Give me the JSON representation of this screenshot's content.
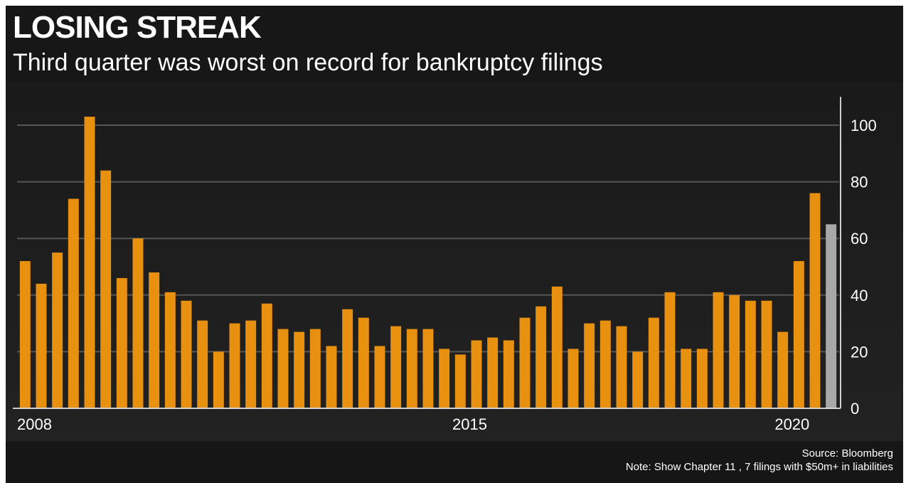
{
  "header": {
    "title": "LOSING STREAK",
    "subtitle": "Third quarter was worst on record for bankruptcy filings"
  },
  "footer": {
    "source": "Source: Bloomberg",
    "note": "Note: Show Chapter 11 , 7 filings with $50m+ in liabilities"
  },
  "colors": {
    "background": "#171717",
    "bar": "#e8900f",
    "highlight_bar": "#a8a8a8",
    "grid": "#555555",
    "text": "#ffffff"
  },
  "chart_data": {
    "type": "bar",
    "title": "LOSING STREAK",
    "subtitle": "Third quarter was worst on record for bankruptcy filings",
    "xlabel": "",
    "ylabel": "",
    "ylim": [
      0,
      110
    ],
    "yticks": [
      0,
      20,
      40,
      60,
      80,
      100
    ],
    "y_axis_side": "right",
    "grid": true,
    "x_tick_labels": [
      {
        "label": "2008",
        "index": 0
      },
      {
        "label": "2015",
        "index": 27
      },
      {
        "label": "2020",
        "index": 47
      }
    ],
    "values": [
      52,
      44,
      55,
      74,
      103,
      84,
      46,
      60,
      48,
      41,
      38,
      31,
      20,
      30,
      31,
      37,
      28,
      27,
      28,
      22,
      35,
      32,
      22,
      29,
      28,
      28,
      21,
      19,
      24,
      25,
      24,
      32,
      36,
      43,
      21,
      30,
      31,
      29,
      20,
      32,
      41,
      21,
      21,
      41,
      40,
      38,
      38,
      27,
      52,
      76,
      65
    ],
    "highlight_index": 50
  }
}
